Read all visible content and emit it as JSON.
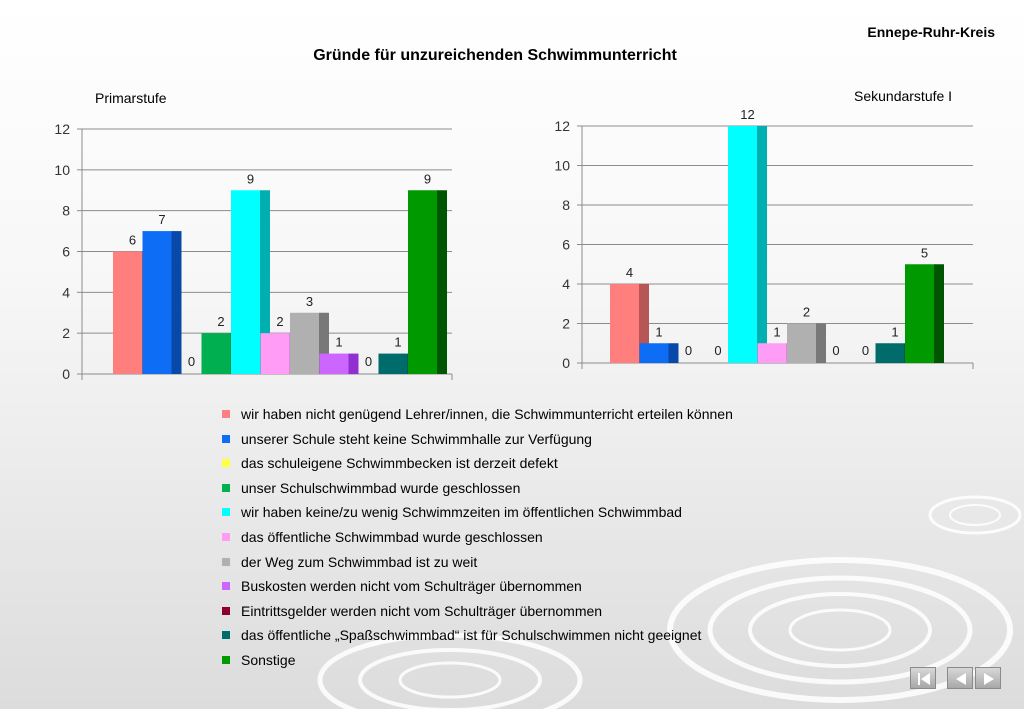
{
  "header": {
    "region": "Ennepe-Ruhr-Kreis",
    "title": "Gründe für unzureichenden Schwimmunterricht"
  },
  "colors": {
    "categories": [
      "#ff7f7f",
      "#0d6ef5",
      "#ffff44",
      "#00b050",
      "#00ffff",
      "#ff9cf5",
      "#b0b0b0",
      "#cc66ff",
      "#8b0030",
      "#006b6b",
      "#009900"
    ],
    "categories_dark": [
      "#b85555",
      "#0848a8",
      "#c8c800",
      "#007a35",
      "#00b0b0",
      "#c070c0",
      "#787878",
      "#9030d0",
      "#600020",
      "#004444",
      "#005500"
    ]
  },
  "chart_data": [
    {
      "type": "bar",
      "title": "Primarstufe",
      "categories": [
        "wir haben nicht genügend Lehrer/innen, die Schwimmunterricht erteilen können",
        "unserer Schule steht keine Schwimmhalle zur Verfügung",
        "das schuleigene Schwimmbecken ist derzeit defekt",
        "unser Schulschwimmbad wurde geschlossen",
        "wir haben keine/zu wenig Schwimmzeiten im öffentlichen Schwimmbad",
        "das öffentliche Schwimmbad wurde geschlossen",
        "der Weg zum Schwimmbad ist zu weit",
        "Buskosten werden nicht vom Schulträger übernommen",
        "Eintrittsgelder werden nicht vom Schulträger übernommen",
        "das öffentliche „Spaßschwimmbad“ ist für  Schulschwimmen nicht geeignet",
        "Sonstige"
      ],
      "values": [
        6,
        7,
        0,
        2,
        9,
        2,
        3,
        1,
        0,
        1,
        9
      ],
      "ylim": [
        0,
        12
      ],
      "yticks": [
        "0",
        "2",
        "4",
        "6",
        "8",
        "10",
        "12"
      ],
      "grid": true
    },
    {
      "type": "bar",
      "title": "Sekundarstufe I",
      "categories": [
        "wir haben nicht genügend Lehrer/innen, die Schwimmunterricht erteilen können",
        "unserer Schule steht keine Schwimmhalle zur Verfügung",
        "das schuleigene Schwimmbecken ist derzeit defekt",
        "unser Schulschwimmbad wurde geschlossen",
        "wir haben keine/zu wenig Schwimmzeiten im öffentlichen Schwimmbad",
        "das öffentliche Schwimmbad wurde geschlossen",
        "der Weg zum Schwimmbad ist zu weit",
        "Buskosten werden nicht vom Schulträger übernommen",
        "Eintrittsgelder werden nicht vom Schulträger übernommen",
        "das öffentliche „Spaßschwimmbad“ ist für  Schulschwimmen nicht geeignet",
        "Sonstige"
      ],
      "values": [
        4,
        1,
        0,
        0,
        12,
        1,
        2,
        0,
        0,
        1,
        5
      ],
      "ylim": [
        0,
        12
      ],
      "yticks": [
        "0",
        "2",
        "4",
        "6",
        "8",
        "10",
        "12"
      ],
      "grid": true
    }
  ],
  "legend": {
    "items": [
      "wir haben nicht genügend Lehrer/innen, die Schwimmunterricht erteilen können",
      "unserer Schule steht keine Schwimmhalle zur Verfügung",
      "das schuleigene Schwimmbecken ist derzeit defekt",
      "unser Schulschwimmbad wurde geschlossen",
      "wir haben keine/zu wenig Schwimmzeiten im öffentlichen Schwimmbad",
      "das öffentliche Schwimmbad wurde geschlossen",
      "der Weg zum Schwimmbad ist zu weit",
      "Buskosten werden nicht vom Schulträger übernommen",
      "Eintrittsgelder werden nicht vom Schulträger übernommen",
      "das öffentliche „Spaßschwimmbad“ ist für  Schulschwimmen nicht geeignet",
      "Sonstige"
    ]
  },
  "nav": {
    "icons": [
      "first-slide-icon",
      "previous-slide-icon",
      "next-slide-icon"
    ]
  }
}
